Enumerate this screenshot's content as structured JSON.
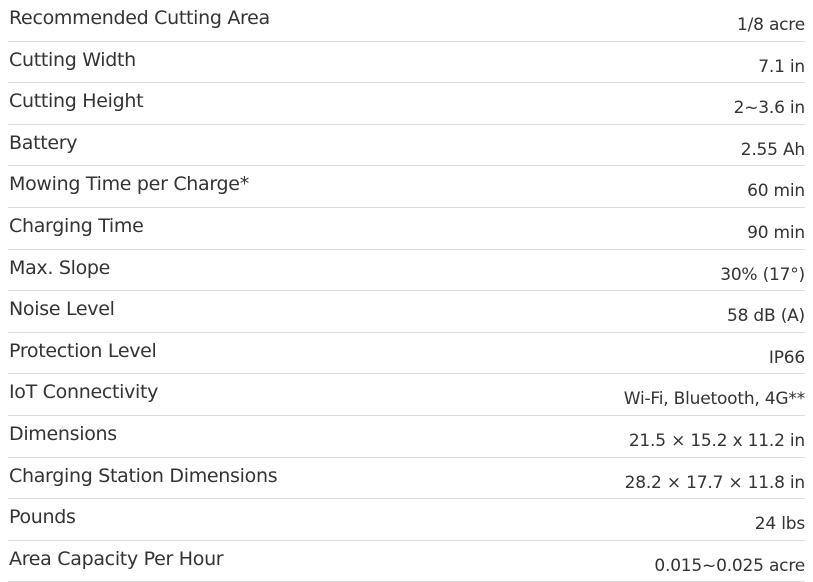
{
  "specs": [
    {
      "label": "Recommended Cutting Area",
      "value": "1/8 acre"
    },
    {
      "label": "Cutting Width",
      "value": "7.1 in"
    },
    {
      "label": "Cutting Height",
      "value": "2~3.6 in"
    },
    {
      "label": "Battery",
      "value": "2.55 Ah"
    },
    {
      "label": "Mowing Time per Charge*",
      "value": "60 min"
    },
    {
      "label": "Charging Time",
      "value": "90 min"
    },
    {
      "label": "Max. Slope",
      "value": "30% (17°)"
    },
    {
      "label": "Noise Level",
      "value": "58 dB (A)"
    },
    {
      "label": "Protection Level",
      "value": "IP66"
    },
    {
      "label": "IoT Connectivity",
      "value": "Wi-Fi, Bluetooth, 4G**"
    },
    {
      "label": "Dimensions",
      "value": "21.5 × 15.2 x 11.2 in"
    },
    {
      "label": "Charging Station Dimensions",
      "value": "28.2 × 17.7 × 11.8 in"
    },
    {
      "label": "Pounds",
      "value": "24 lbs"
    },
    {
      "label": "Area Capacity Per Hour",
      "value": "0.015~0.025 acre"
    }
  ]
}
